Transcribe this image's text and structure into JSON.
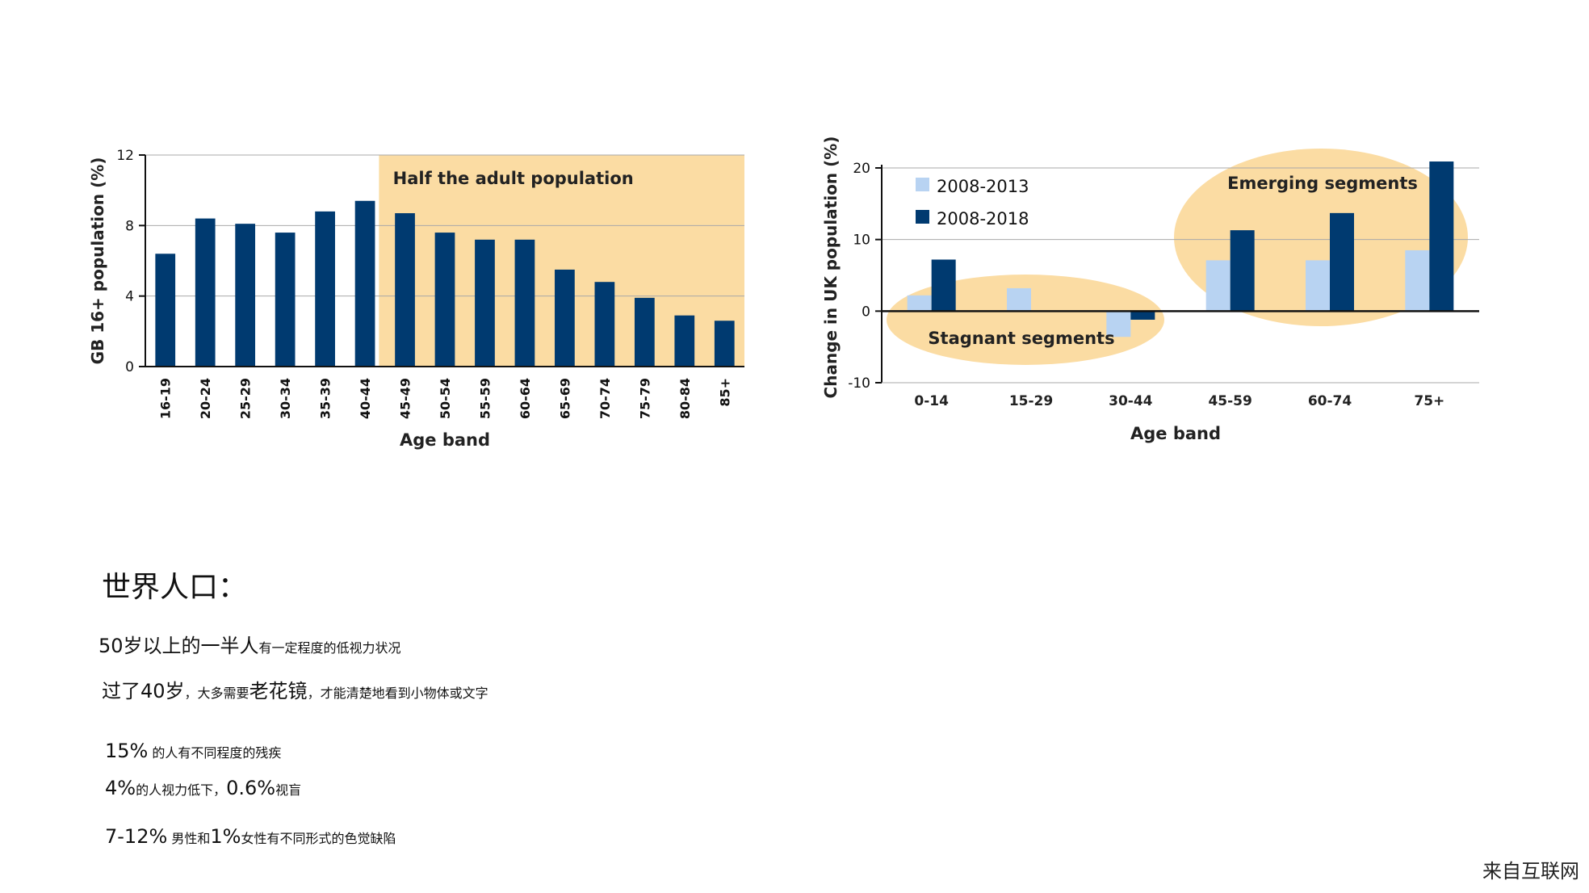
{
  "chart_data": [
    {
      "type": "bar",
      "ylabel": "GB 16+ population (%)",
      "xlabel": "Age band",
      "ylim": [
        0,
        12
      ],
      "yticks": [
        0,
        4,
        8,
        12
      ],
      "categories": [
        "16-19",
        "20-24",
        "25-29",
        "30-34",
        "35-39",
        "40-44",
        "45-49",
        "50-54",
        "55-59",
        "60-64",
        "65-69",
        "70-74",
        "75-79",
        "80-84",
        "85+"
      ],
      "values": [
        6.4,
        8.4,
        8.1,
        7.6,
        8.8,
        9.4,
        8.7,
        7.6,
        7.2,
        7.2,
        5.5,
        4.8,
        3.9,
        2.9,
        2.6
      ],
      "annotation": {
        "text": "Half the adult population",
        "from_category": "45-49",
        "to_category": "85+",
        "color": "#fbdca3"
      },
      "bar_color": "#003a70",
      "grid": true
    },
    {
      "type": "bar",
      "ylabel": "Change in UK population (%)",
      "xlabel": "Age band",
      "ylim": [
        -10,
        20
      ],
      "yticks": [
        -10,
        0,
        10,
        20
      ],
      "categories": [
        "0-14",
        "15-29",
        "30-44",
        "45-59",
        "60-74",
        "75+"
      ],
      "series": [
        {
          "name": "2008-2013",
          "values": [
            2.2,
            3.2,
            -3.6,
            7.1,
            7.1,
            8.5
          ],
          "color": "#b8d3f2"
        },
        {
          "name": "2008-2018",
          "values": [
            7.2,
            0,
            -1.2,
            11.3,
            13.7,
            20.9
          ],
          "color": "#003a70"
        }
      ],
      "legend": "top-left",
      "grid": true,
      "annotations": [
        {
          "text": "Stagnant segments",
          "color": "#fbdca3"
        },
        {
          "text": "Emerging segments",
          "color": "#fbdca3"
        }
      ]
    }
  ],
  "notes": {
    "title": "世界人口：",
    "line1_big": "50岁以上的一半人",
    "line1_small": "有一定程度的低视力状况",
    "line2_a": "过了40岁",
    "line2_b": "，大多需要",
    "line2_c": "老花镜",
    "line2_d": "，才能清楚地看到小物体或文字",
    "line3_big": "15%",
    "line3_small": " 的人有不同程度的残疾",
    "line4_a": "4%",
    "line4_b": "的人视力低下，",
    "line4_c": "0.6%",
    "line4_d": "视盲",
    "line5_a": "7-12%",
    "line5_b": " 男性和",
    "line5_c": "1%",
    "line5_d": "女性有不同形式的色觉缺陷"
  },
  "watermark": "来自互联网"
}
